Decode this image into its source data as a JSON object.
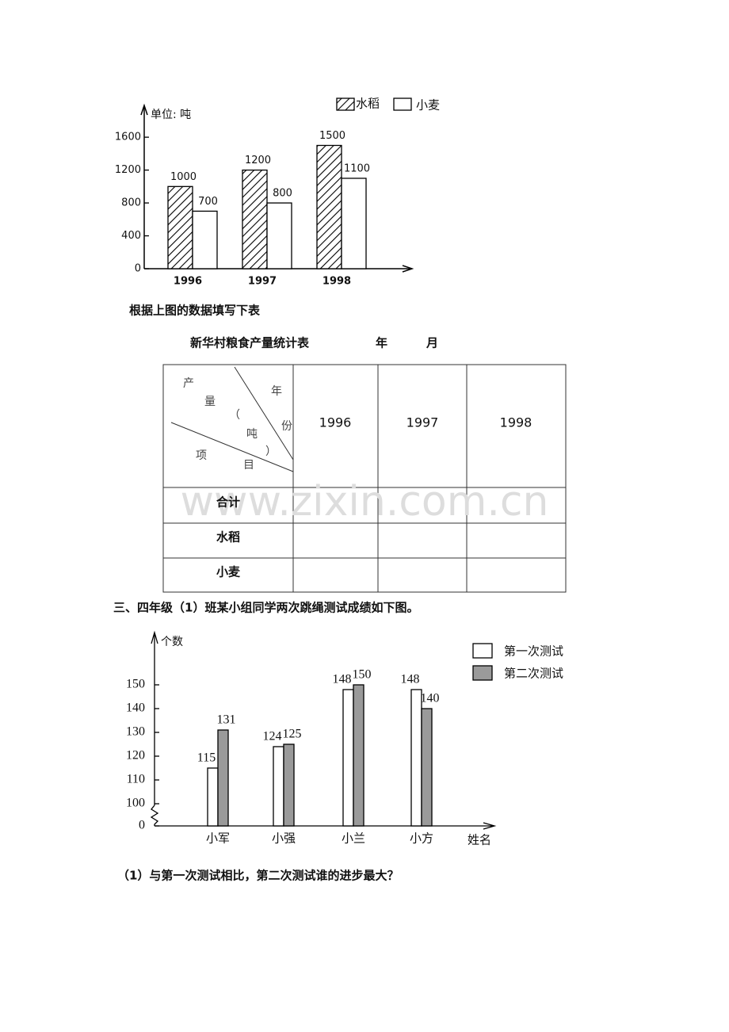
{
  "chart_data": [
    {
      "type": "bar",
      "y_label": "单位: 吨",
      "categories": [
        "1996",
        "1997",
        "1998"
      ],
      "series": [
        {
          "name": "水稻",
          "color": "#000000",
          "pattern": "hatch",
          "values": [
            1000,
            1200,
            1500
          ]
        },
        {
          "name": "小麦",
          "color": "#ffffff",
          "values": [
            700,
            800,
            1100
          ]
        }
      ],
      "ylim": [
        0,
        1900
      ],
      "yticks": [
        0,
        400,
        800,
        1200,
        1600
      ],
      "legend": "top-right"
    },
    {
      "type": "bar",
      "y_label": "个数",
      "x_label": "姓名",
      "categories": [
        "小军",
        "小强",
        "小兰",
        "小方"
      ],
      "series": [
        {
          "name": "第一次测试",
          "color": "#ffffff",
          "values": [
            115,
            124,
            148,
            148
          ]
        },
        {
          "name": "第二次测试",
          "color": "#9a9a9a",
          "values": [
            131,
            125,
            150,
            140
          ]
        }
      ],
      "ylim": [
        0,
        170
      ],
      "yticks": [
        0,
        100,
        110,
        120,
        130,
        140,
        150
      ],
      "axis_break": true,
      "legend": "top-right"
    }
  ],
  "instruction": "根据上图的数据填写下表",
  "table": {
    "title": "新华村粮食产量统计表",
    "year": "年",
    "month": "月",
    "corner": {
      "quantity": [
        "产",
        "量",
        "（",
        "吨",
        "）"
      ],
      "year": [
        "年",
        "份"
      ],
      "item": [
        "项",
        "目"
      ]
    },
    "columns": [
      "1996",
      "1997",
      "1998"
    ],
    "rows": [
      "合计",
      "水稻",
      "小麦"
    ]
  },
  "section": "三、四年级（1）班某小组同学两次跳绳测试成绩如下图。",
  "question": "（1）与第一次测试相比，第二次测试谁的进步最大？",
  "watermark": "www.zixin.com.cn"
}
